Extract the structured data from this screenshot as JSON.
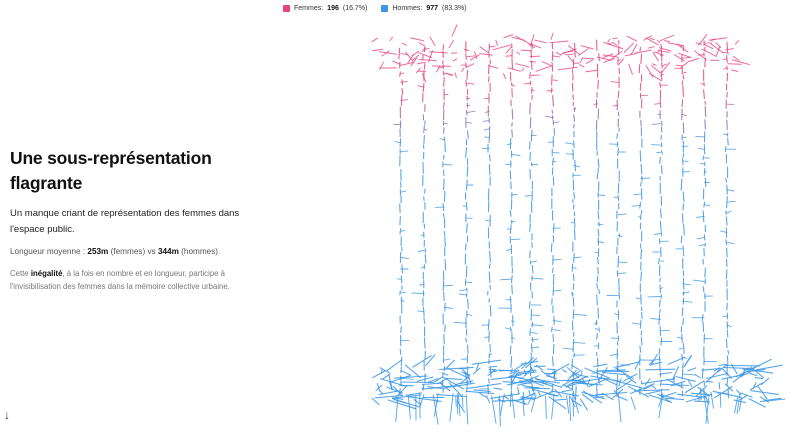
{
  "legend": {
    "femmes_label": "Femmes:",
    "femmes_count": "196",
    "femmes_pct": "(16.7%)",
    "hommes_label": "Hommes:",
    "hommes_count": "977",
    "hommes_pct": "(83.3%)"
  },
  "story": {
    "title": "Une sous-représentation flagrante",
    "lead": "Un manque criant de représentation des femmes dans l'espace public.",
    "avg_prefix": "Longueur moyenne : ",
    "avg_femmes_value": "253m",
    "avg_femmes_label": " (femmes) vs ",
    "avg_hommes_value": "344m",
    "avg_hommes_label": " (hommes).",
    "note_prefix": "Cette ",
    "note_strong": "inégalité",
    "note_rest": ", à la fois en nombre et en longueur, participe à l'invisibilisation des femmes dans la mémoire collective urbaine.",
    "scroll_arrow": "↓"
  },
  "colors": {
    "femmes": "#e8447a",
    "hommes": "#3b97e6"
  },
  "chart_data": {
    "type": "stacked-strokes",
    "series": [
      {
        "name": "Femmes",
        "count": 196,
        "percent": 16.7,
        "mean_length_m": 253
      },
      {
        "name": "Hommes",
        "count": 977,
        "percent": 83.3,
        "mean_length_m": 344
      }
    ]
  }
}
